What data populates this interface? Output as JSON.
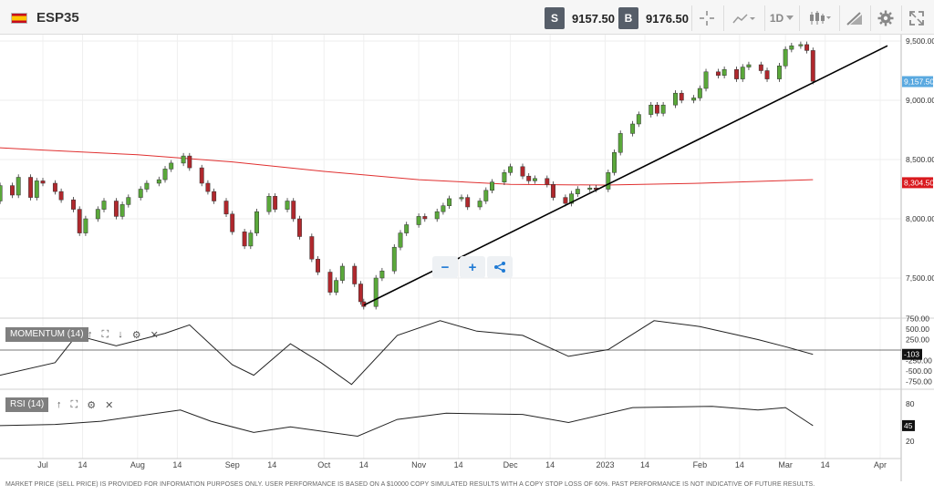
{
  "header": {
    "symbol": "ESP35",
    "sell_tag": "S",
    "sell_price": "9157.50",
    "buy_tag": "B",
    "buy_price": "9176.50",
    "timeframe": "1D",
    "icons": [
      "flag-icon",
      "crosshair-icon",
      "chart-type-icon",
      "candlestick-icon",
      "drawing-tools-icon",
      "settings-icon",
      "fullscreen-icon"
    ]
  },
  "zoom": {
    "minus": "−",
    "plus": "+",
    "share_icon": "share-icon"
  },
  "indicators": [
    {
      "label": "MOMENTUM (14)"
    },
    {
      "label": "RSI (14)"
    }
  ],
  "disclaimer": "MARKET PRICE (SELL PRICE) IS PROVIDED FOR INFORMATION PURPOSES ONLY. USER PERFORMANCE IS BASED ON A $10000 COPY SIMULATED RESULTS WITH A COPY STOP LOSS OF 60%. PAST PERFORMANCE IS NOT INDICATIVE OF FUTURE RESULTS.",
  "colors": {
    "up": "#5aa83a",
    "down": "#b0282d",
    "ma": "#e03030",
    "trend": "#000000",
    "price_tag": "#5aa9e0",
    "ma_tag": "#d9191e"
  },
  "chart_data": {
    "type": "candlestick",
    "x_ticks": [
      "Jul",
      "14",
      "Aug",
      "14",
      "Sep",
      "14",
      "Oct",
      "14",
      "Nov",
      "14",
      "Dec",
      "14",
      "2023",
      "14",
      "Feb",
      "14",
      "Mar",
      "14",
      "Apr"
    ],
    "y_ticks": [
      "9,500.00",
      "9,000.00",
      "8,500.00",
      "8,000.00",
      "7,500.00"
    ],
    "y_ticks_values": [
      9500,
      9000,
      8500,
      8000,
      7500
    ],
    "current_price": "9,157.50",
    "ma_value_label": "8,304.50",
    "close_series": [
      [
        "2022-06-15",
        8150
      ],
      [
        "2022-06-17",
        8280
      ],
      [
        "2022-06-21",
        8200
      ],
      [
        "2022-06-23",
        8350
      ],
      [
        "2022-06-27",
        8180
      ],
      [
        "2022-06-29",
        8320
      ],
      [
        "2022-07-01",
        8300
      ],
      [
        "2022-07-05",
        8230
      ],
      [
        "2022-07-07",
        8160
      ],
      [
        "2022-07-11",
        8080
      ],
      [
        "2022-07-13",
        7880
      ],
      [
        "2022-07-15",
        8000
      ],
      [
        "2022-07-19",
        8080
      ],
      [
        "2022-07-21",
        8150
      ],
      [
        "2022-07-25",
        8020
      ],
      [
        "2022-07-27",
        8120
      ],
      [
        "2022-07-29",
        8180
      ],
      [
        "2022-08-02",
        8250
      ],
      [
        "2022-08-04",
        8300
      ],
      [
        "2022-08-08",
        8330
      ],
      [
        "2022-08-10",
        8420
      ],
      [
        "2022-08-12",
        8470
      ],
      [
        "2022-08-16",
        8530
      ],
      [
        "2022-08-18",
        8430
      ],
      [
        "2022-08-22",
        8300
      ],
      [
        "2022-08-24",
        8230
      ],
      [
        "2022-08-26",
        8150
      ],
      [
        "2022-08-30",
        8040
      ],
      [
        "2022-09-01",
        7890
      ],
      [
        "2022-09-05",
        7770
      ],
      [
        "2022-09-07",
        7880
      ],
      [
        "2022-09-09",
        8060
      ],
      [
        "2022-09-13",
        8190
      ],
      [
        "2022-09-15",
        8080
      ],
      [
        "2022-09-19",
        8150
      ],
      [
        "2022-09-21",
        8000
      ],
      [
        "2022-09-23",
        7850
      ],
      [
        "2022-09-27",
        7660
      ],
      [
        "2022-09-29",
        7550
      ],
      [
        "2022-10-03",
        7380
      ],
      [
        "2022-10-05",
        7480
      ],
      [
        "2022-10-07",
        7600
      ],
      [
        "2022-10-11",
        7450
      ],
      [
        "2022-10-13",
        7300
      ],
      [
        "2022-10-14",
        7260
      ],
      [
        "2022-10-18",
        7500
      ],
      [
        "2022-10-20",
        7560
      ],
      [
        "2022-10-24",
        7760
      ],
      [
        "2022-10-26",
        7880
      ],
      [
        "2022-10-28",
        7950
      ],
      [
        "2022-11-01",
        8020
      ],
      [
        "2022-11-03",
        8000
      ],
      [
        "2022-11-07",
        8060
      ],
      [
        "2022-11-09",
        8110
      ],
      [
        "2022-11-11",
        8170
      ],
      [
        "2022-11-15",
        8180
      ],
      [
        "2022-11-17",
        8100
      ],
      [
        "2022-11-21",
        8150
      ],
      [
        "2022-11-23",
        8240
      ],
      [
        "2022-11-25",
        8310
      ],
      [
        "2022-11-29",
        8390
      ],
      [
        "2022-12-01",
        8440
      ],
      [
        "2022-12-05",
        8360
      ],
      [
        "2022-12-07",
        8320
      ],
      [
        "2022-12-09",
        8340
      ],
      [
        "2022-12-13",
        8290
      ],
      [
        "2022-12-15",
        8180
      ],
      [
        "2022-12-19",
        8130
      ],
      [
        "2022-12-21",
        8210
      ],
      [
        "2022-12-23",
        8250
      ],
      [
        "2022-12-27",
        8260
      ],
      [
        "2022-12-29",
        8250
      ],
      [
        "2023-01-02",
        8390
      ],
      [
        "2023-01-04",
        8560
      ],
      [
        "2023-01-06",
        8720
      ],
      [
        "2023-01-10",
        8800
      ],
      [
        "2023-01-12",
        8880
      ],
      [
        "2023-01-16",
        8960
      ],
      [
        "2023-01-18",
        8890
      ],
      [
        "2023-01-20",
        8960
      ],
      [
        "2023-01-24",
        9060
      ],
      [
        "2023-01-26",
        9000
      ],
      [
        "2023-01-30",
        9020
      ],
      [
        "2023-02-01",
        9100
      ],
      [
        "2023-02-03",
        9240
      ],
      [
        "2023-02-07",
        9210
      ],
      [
        "2023-02-09",
        9260
      ],
      [
        "2023-02-13",
        9180
      ],
      [
        "2023-02-15",
        9280
      ],
      [
        "2023-02-17",
        9300
      ],
      [
        "2023-02-21",
        9250
      ],
      [
        "2023-02-23",
        9180
      ],
      [
        "2023-02-27",
        9290
      ],
      [
        "2023-03-01",
        9430
      ],
      [
        "2023-03-03",
        9460
      ],
      [
        "2023-03-06",
        9470
      ],
      [
        "2023-03-08",
        9420
      ],
      [
        "2023-03-10",
        9160
      ]
    ],
    "ma_series": [
      [
        "2022-06-01",
        8620
      ],
      [
        "2022-07-01",
        8580
      ],
      [
        "2022-08-01",
        8540
      ],
      [
        "2022-09-01",
        8480
      ],
      [
        "2022-10-01",
        8400
      ],
      [
        "2022-11-01",
        8330
      ],
      [
        "2022-12-01",
        8290
      ],
      [
        "2023-01-01",
        8285
      ],
      [
        "2023-02-01",
        8300
      ],
      [
        "2023-03-10",
        8330
      ]
    ],
    "trendline": [
      [
        "2022-10-14",
        7270
      ],
      [
        "2023-04-01",
        9460
      ]
    ],
    "momentum": {
      "label": "MOMENTUM (14)",
      "y_ticks": [
        "750.00",
        "500.00",
        "250.00",
        "-250.00",
        "-500.00",
        "-750.00"
      ],
      "current": "-103",
      "values": [
        [
          "2022-06-15",
          -600
        ],
        [
          "2022-07-05",
          -300
        ],
        [
          "2022-07-12",
          350
        ],
        [
          "2022-07-25",
          100
        ],
        [
          "2022-08-10",
          400
        ],
        [
          "2022-08-18",
          600
        ],
        [
          "2022-09-01",
          -350
        ],
        [
          "2022-09-08",
          -600
        ],
        [
          "2022-09-20",
          150
        ],
        [
          "2022-09-30",
          -300
        ],
        [
          "2022-10-10",
          -820
        ],
        [
          "2022-10-25",
          350
        ],
        [
          "2022-11-08",
          700
        ],
        [
          "2022-11-20",
          450
        ],
        [
          "2022-12-05",
          350
        ],
        [
          "2022-12-20",
          -150
        ],
        [
          "2023-01-02",
          10
        ],
        [
          "2023-01-17",
          700
        ],
        [
          "2023-02-01",
          560
        ],
        [
          "2023-02-20",
          250
        ],
        [
          "2023-03-01",
          80
        ],
        [
          "2023-03-10",
          -103
        ]
      ]
    },
    "rsi": {
      "label": "RSI (14)",
      "y_ticks": [
        "80",
        "20"
      ],
      "current": "45",
      "values": [
        [
          "2022-06-15",
          45
        ],
        [
          "2022-07-05",
          47
        ],
        [
          "2022-07-20",
          52
        ],
        [
          "2022-08-15",
          70
        ],
        [
          "2022-08-25",
          52
        ],
        [
          "2022-09-08",
          34
        ],
        [
          "2022-09-20",
          43
        ],
        [
          "2022-10-12",
          28
        ],
        [
          "2022-10-25",
          55
        ],
        [
          "2022-11-10",
          65
        ],
        [
          "2022-12-05",
          63
        ],
        [
          "2022-12-20",
          50
        ],
        [
          "2023-01-10",
          74
        ],
        [
          "2023-02-05",
          76
        ],
        [
          "2023-02-20",
          70
        ],
        [
          "2023-03-01",
          74
        ],
        [
          "2023-03-10",
          45
        ]
      ]
    }
  }
}
